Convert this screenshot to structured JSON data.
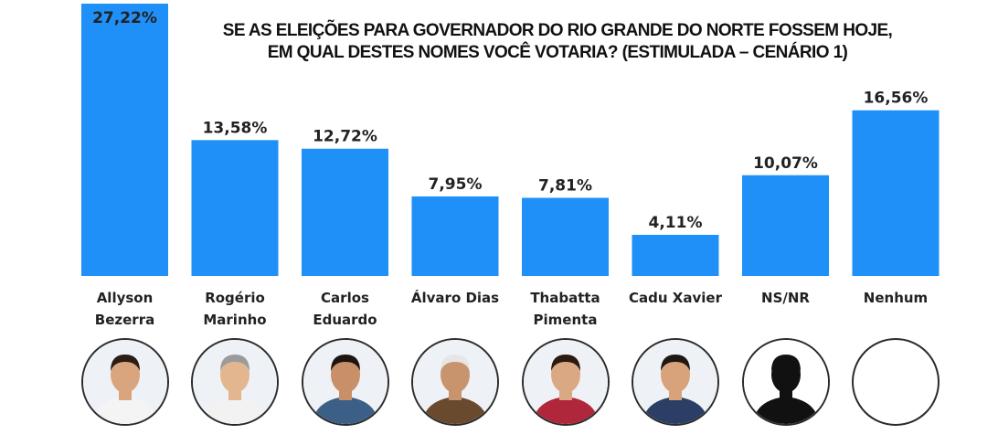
{
  "title_lines": [
    "SE AS ELEIÇÕES PARA GOVERNADOR DO RIO GRANDE DO NORTE FOSSEM HOJE,",
    "EM QUAL DESTES NOMES VOCÊ VOTARIA? (ESTIMULADA – CENÁRIO 1)"
  ],
  "colors": {
    "bar": "#1E90F7",
    "text": "#222222",
    "avatar_border": "#2b2b2b"
  },
  "avatars": [
    {
      "icon": "candidate-photo-icon",
      "skin": "#d9a57e",
      "hair": "#2a1d14",
      "shirt": "#f4f4f4"
    },
    {
      "icon": "candidate-photo-icon",
      "skin": "#e3b690",
      "hair": "#9b9b9b",
      "shirt": "#f2f2f2"
    },
    {
      "icon": "candidate-photo-icon",
      "skin": "#c98f68",
      "hair": "#1d1510",
      "shirt": "#3b5f86"
    },
    {
      "icon": "candidate-photo-icon",
      "skin": "#c8946d",
      "hair": "#e6e6e6",
      "shirt": "#6a4a2e"
    },
    {
      "icon": "candidate-photo-icon",
      "skin": "#dba884",
      "hair": "#2b1a10",
      "shirt": "#b0263a"
    },
    {
      "icon": "candidate-photo-icon",
      "skin": "#d8a27a",
      "hair": "#1f1812",
      "shirt": "#2b3f66"
    },
    {
      "icon": "silhouette-icon",
      "skin": "#111111",
      "hair": "#111111",
      "shirt": "#111111"
    },
    {
      "icon": "empty-circle-icon"
    }
  ],
  "chart_data": {
    "type": "bar",
    "title": "SE AS ELEIÇÕES PARA GOVERNADOR DO RIO GRANDE DO NORTE FOSSEM HOJE, EM QUAL DESTES NOMES VOCÊ VOTARIA? (ESTIMULADA – CENÁRIO 1)",
    "categories": [
      [
        "Allyson",
        "Bezerra"
      ],
      [
        "Rogério",
        "Marinho"
      ],
      [
        "Carlos",
        "Eduardo"
      ],
      [
        "Álvaro Dias"
      ],
      [
        "Thabatta",
        "Pimenta"
      ],
      [
        "Cadu Xavier"
      ],
      [
        "NS/NR"
      ],
      [
        "Nenhum"
      ]
    ],
    "values": [
      27.22,
      13.58,
      12.72,
      7.95,
      7.81,
      4.11,
      10.07,
      16.56
    ],
    "value_labels": [
      "27,22%",
      "13,58%",
      "12,72%",
      "7,95%",
      "7,81%",
      "4,11%",
      "10,07%",
      "16,56%"
    ],
    "ylim": [
      0,
      27.22
    ],
    "grid": false,
    "legend": "none"
  }
}
